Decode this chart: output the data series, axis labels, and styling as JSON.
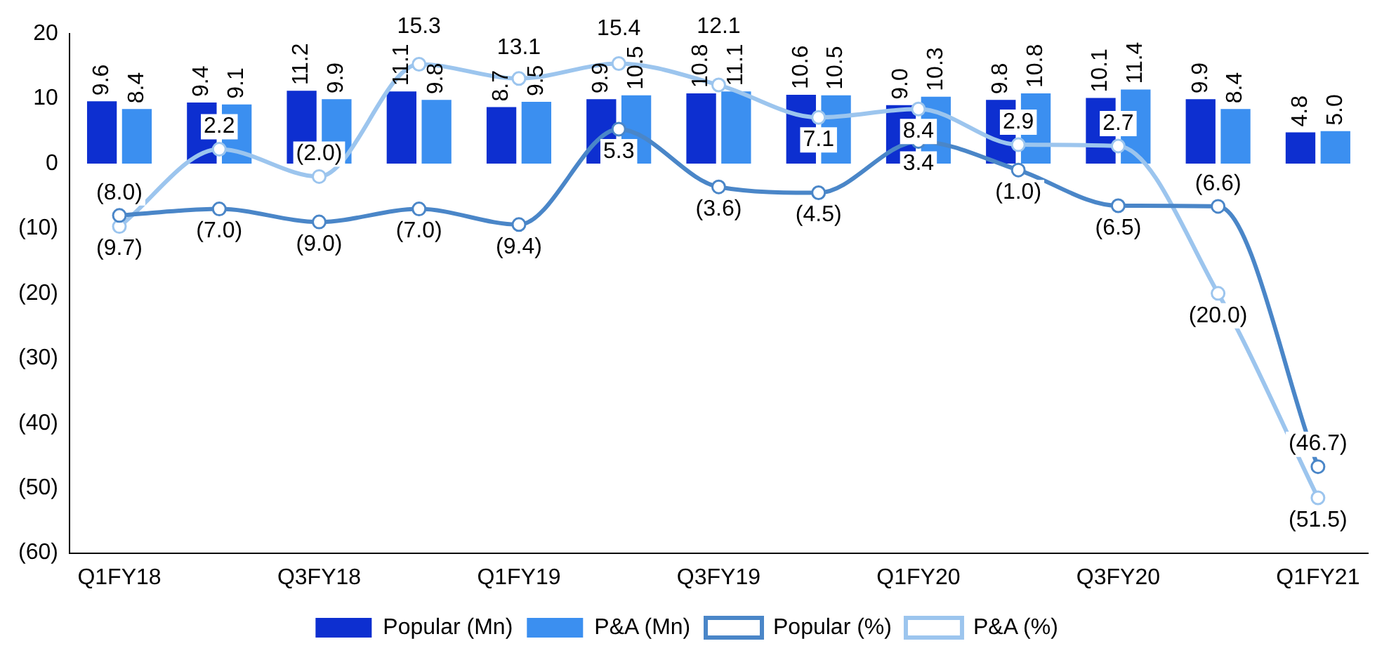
{
  "chart_data": {
    "type": "bar",
    "categories": [
      "Q1FY18",
      null,
      "Q3FY18",
      null,
      "Q1FY19",
      null,
      "Q3FY19",
      null,
      "Q1FY20",
      null,
      "Q3FY20",
      null,
      "Q1FY21"
    ],
    "series": [
      {
        "name": "Popular (Mn)",
        "color": "#0d2fd0",
        "values": [
          9.6,
          9.4,
          11.2,
          11.1,
          8.7,
          9.9,
          10.8,
          10.6,
          9.0,
          9.8,
          10.1,
          9.9,
          4.8
        ],
        "value_labels": [
          "9.6",
          "9.4",
          "11.2",
          "11.1",
          "8.7",
          "9.9",
          "10.8",
          "10.6",
          "9.0",
          "9.8",
          "10.1",
          "9.9",
          "4.8"
        ]
      },
      {
        "name": "P&A (Mn)",
        "color": "#3b8ff0",
        "values": [
          8.4,
          9.1,
          9.9,
          9.8,
          9.5,
          10.5,
          11.1,
          10.5,
          10.3,
          10.8,
          11.4,
          8.4,
          5.0
        ],
        "value_labels": [
          "8.4",
          "9.1",
          "9.9",
          "9.8",
          "9.5",
          "10.5",
          "11.1",
          "10.5",
          "10.3",
          "10.8",
          "11.4",
          "8.4",
          "5.0"
        ]
      },
      {
        "name": "Popular (%)",
        "type": "line",
        "color": "#4a86c8",
        "values": [
          -8.0,
          -7.0,
          -9.0,
          -7.0,
          -9.4,
          5.3,
          -3.6,
          -4.5,
          3.4,
          -1.0,
          -6.5,
          -6.6,
          -46.7
        ],
        "value_labels": [
          "(8.0)",
          "(7.0)",
          "(9.0)",
          "(7.0)",
          "(9.4)",
          "5.3",
          "(3.6)",
          "(4.5)",
          "3.4",
          "(1.0)",
          "(6.5)",
          "(6.6)",
          "(46.7)"
        ]
      },
      {
        "name": "P&A (%)",
        "type": "line",
        "color": "#9cc5ee",
        "values": [
          -9.7,
          2.2,
          -2.0,
          15.3,
          13.1,
          15.4,
          12.1,
          7.1,
          8.4,
          2.9,
          2.7,
          -20.0,
          -51.5
        ],
        "value_labels": [
          "(9.7)",
          "2.2",
          "(2.0)",
          "15.3",
          "13.1",
          "15.4",
          "12.1",
          "7.1",
          "8.4",
          "2.9",
          "2.7",
          "(20.0)",
          "(51.5)"
        ]
      }
    ],
    "ylim": [
      -60,
      20
    ],
    "yticks": [
      20,
      10,
      0,
      {
        "value": -10,
        "label": "(10)"
      },
      {
        "value": -20,
        "label": "(20)"
      },
      {
        "value": -30,
        "label": "(30)"
      },
      {
        "value": -40,
        "label": "(40)"
      },
      {
        "value": -50,
        "label": "(50)"
      },
      {
        "value": -60,
        "label": "(60)"
      }
    ],
    "grid": false,
    "legend": "bottom",
    "marker": "circle"
  }
}
